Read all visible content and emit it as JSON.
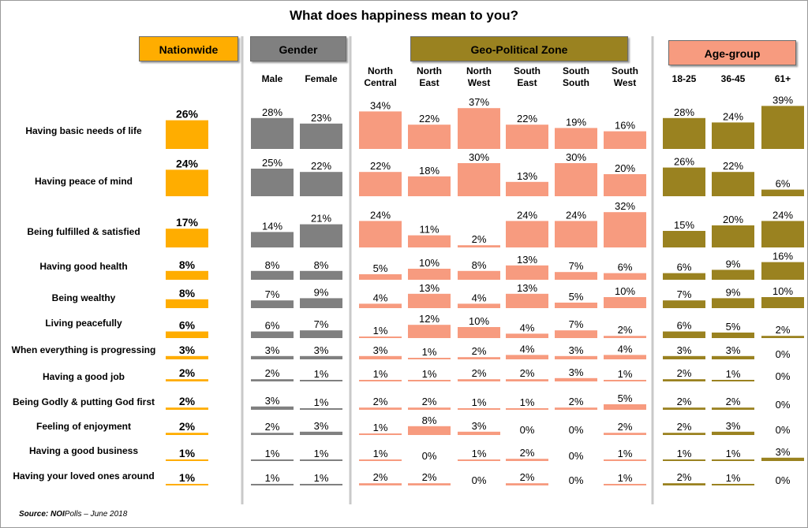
{
  "title": "What does happiness mean to you?",
  "source": {
    "label": "Source:",
    "brand": "NOI",
    "rest": "Polls – June 2018"
  },
  "colors": {
    "nationwide": "#ffad00",
    "gender": "#808080",
    "zone": "#f79b7f",
    "age": "#9a8220"
  },
  "chart_data": {
    "type": "bar",
    "title": "What does happiness mean to you?",
    "categories": [
      "Having basic needs of life",
      "Having peace of mind",
      "Being fulfilled & satisfied",
      "Having good health",
      "Being wealthy",
      "Living peacefully",
      "When everything is progressing",
      "Having a good job",
      "Being Godly & putting God first",
      "Feeling of enjoyment",
      "Having a good business",
      "Having your loved ones around"
    ],
    "groups": [
      {
        "name": "Nationwide",
        "color": "#ffad00",
        "series": [
          {
            "name": "",
            "values": [
              26,
              24,
              17,
              8,
              8,
              6,
              3,
              2,
              2,
              2,
              1,
              1
            ]
          }
        ]
      },
      {
        "name": "Gender",
        "color": "#808080",
        "series": [
          {
            "name": "Male",
            "values": [
              28,
              25,
              14,
              8,
              7,
              6,
              3,
              2,
              3,
              2,
              1,
              1
            ]
          },
          {
            "name": "Female",
            "values": [
              23,
              22,
              21,
              8,
              9,
              7,
              3,
              1,
              1,
              3,
              1,
              1
            ]
          }
        ]
      },
      {
        "name": "Geo-Political Zone",
        "color": "#f79b7f",
        "series": [
          {
            "name": "North Central",
            "values": [
              34,
              22,
              24,
              5,
              4,
              1,
              3,
              1,
              2,
              1,
              1,
              2
            ]
          },
          {
            "name": "North East",
            "values": [
              22,
              18,
              11,
              10,
              13,
              12,
              1,
              1,
              2,
              8,
              0,
              2
            ]
          },
          {
            "name": "North West",
            "values": [
              37,
              30,
              2,
              8,
              4,
              10,
              2,
              2,
              1,
              3,
              1,
              0
            ]
          },
          {
            "name": "South East",
            "values": [
              22,
              13,
              24,
              13,
              13,
              4,
              4,
              2,
              1,
              0,
              2,
              2
            ]
          },
          {
            "name": "South South",
            "values": [
              19,
              30,
              24,
              7,
              5,
              7,
              3,
              3,
              2,
              0,
              0,
              0
            ]
          },
          {
            "name": "South West",
            "values": [
              16,
              20,
              32,
              6,
              10,
              2,
              4,
              1,
              5,
              2,
              1,
              1
            ]
          }
        ]
      },
      {
        "name": "Age-group",
        "color": "#9a8220",
        "series": [
          {
            "name": "18-25",
            "values": [
              28,
              26,
              15,
              6,
              7,
              6,
              3,
              2,
              2,
              2,
              1,
              2
            ]
          },
          {
            "name": "36-45",
            "values": [
              24,
              22,
              20,
              9,
              9,
              5,
              3,
              1,
              2,
              3,
              1,
              1
            ]
          },
          {
            "name": "61+",
            "values": [
              39,
              6,
              24,
              16,
              10,
              2,
              0,
              0,
              0,
              0,
              3,
              0
            ]
          }
        ]
      }
    ],
    "value_suffix": "%"
  }
}
